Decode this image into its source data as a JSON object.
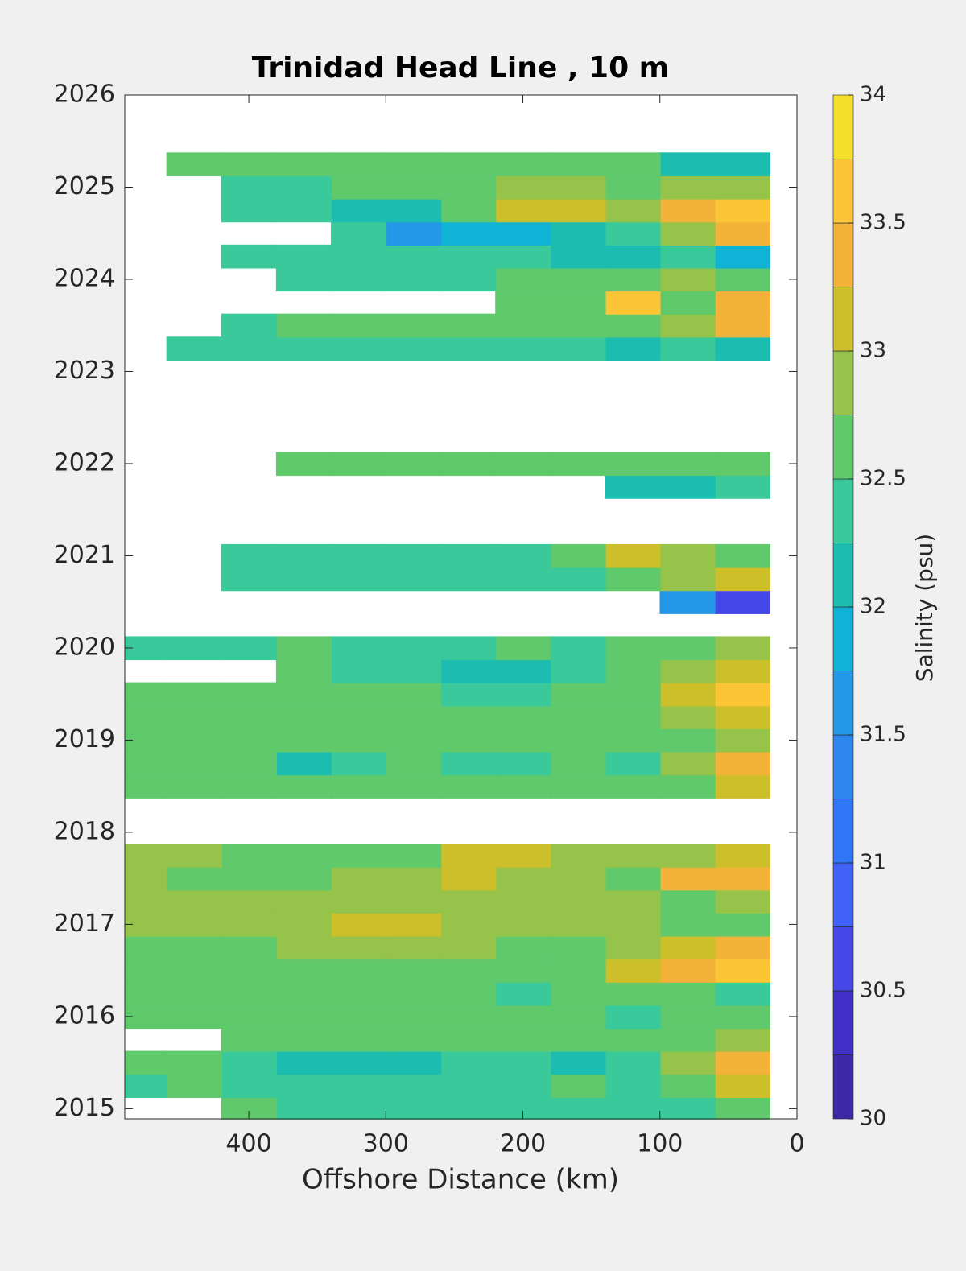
{
  "chart_data": {
    "type": "contour",
    "title": "Trinidad Head Line , 10 m",
    "x_label": "Offshore Distance (km)",
    "colorbar_label": "Salinity (psu)",
    "xlim": [
      490.5,
      0
    ],
    "ylim": [
      2014.89,
      2026
    ],
    "xticks": [
      0,
      100,
      200,
      300,
      400
    ],
    "yticks": [
      2015,
      2016,
      2017,
      2018,
      2019,
      2020,
      2021,
      2022,
      2023,
      2024,
      2025,
      2026
    ],
    "x": [
      40,
      80,
      120,
      160,
      200,
      240,
      280,
      320,
      360,
      400,
      440,
      480
    ],
    "y": [
      2015,
      2015.25,
      2015.5,
      2015.75,
      2016,
      2016.25,
      2016.5,
      2016.75,
      2017,
      2017.25,
      2017.5,
      2017.75,
      2018,
      2018.25,
      2018.5,
      2018.75,
      2019,
      2019.25,
      2019.5,
      2019.75,
      2020,
      2020.25,
      2020.5,
      2020.75,
      2021,
      2021.25,
      2021.5,
      2021.75,
      2022,
      2022.25,
      2022.5,
      2022.75,
      2023,
      2023.25,
      2023.5,
      2023.75,
      2024,
      2024.25,
      2024.5,
      2024.75,
      2025,
      2025.25
    ],
    "z": [
      [
        32.6,
        32.4,
        32.4,
        32.4,
        32.4,
        32.3,
        32.4,
        32.4,
        32.4,
        32.5,
        null,
        null
      ],
      [
        33.1,
        32.6,
        32.3,
        32.5,
        32.3,
        32.4,
        32.3,
        32.3,
        32.4,
        32.4,
        32.5,
        32.4
      ],
      [
        33.4,
        32.9,
        32.3,
        32.2,
        32.4,
        32.3,
        32.2,
        32.2,
        32.1,
        32.3,
        32.5,
        32.5
      ],
      [
        32.8,
        32.5,
        32.6,
        32.7,
        32.6,
        32.5,
        32.5,
        32.5,
        32.6,
        32.7,
        null,
        null
      ],
      [
        32.5,
        32.6,
        32.4,
        32.7,
        32.6,
        32.5,
        32.6,
        32.5,
        32.5,
        32.6,
        32.7,
        32.6
      ],
      [
        32.3,
        32.6,
        32.6,
        32.5,
        32.4,
        32.6,
        32.5,
        32.6,
        32.6,
        32.5,
        32.6,
        32.6
      ],
      [
        33.5,
        33.3,
        33.0,
        32.5,
        32.7,
        32.6,
        32.6,
        32.7,
        32.6,
        32.5,
        32.6,
        32.6
      ],
      [
        33.3,
        33.1,
        32.8,
        32.6,
        32.7,
        32.8,
        32.9,
        32.8,
        32.9,
        32.7,
        32.6,
        32.7
      ],
      [
        32.6,
        32.7,
        32.8,
        32.8,
        32.9,
        32.9,
        33.0,
        33.1,
        32.8,
        32.8,
        32.9,
        32.8
      ],
      [
        32.8,
        32.7,
        32.9,
        32.9,
        32.9,
        32.8,
        32.9,
        32.8,
        32.8,
        32.9,
        32.8,
        32.9
      ],
      [
        33.3,
        33.4,
        32.7,
        32.8,
        32.9,
        33.1,
        32.9,
        32.8,
        32.7,
        32.6,
        32.6,
        32.9
      ],
      [
        33.0,
        32.9,
        32.8,
        32.9,
        33.0,
        33.1,
        32.6,
        32.5,
        32.6,
        32.7,
        32.9,
        32.9
      ],
      [
        null,
        null,
        null,
        null,
        null,
        null,
        null,
        null,
        null,
        null,
        null,
        null
      ],
      [
        null,
        null,
        null,
        null,
        null,
        null,
        null,
        null,
        null,
        null,
        null,
        null
      ],
      [
        33.1,
        32.5,
        32.7,
        32.6,
        32.5,
        32.6,
        32.7,
        32.6,
        32.5,
        32.6,
        32.5,
        32.5
      ],
      [
        33.3,
        32.8,
        32.3,
        32.5,
        32.4,
        32.3,
        32.5,
        32.4,
        32.2,
        32.5,
        32.6,
        32.6
      ],
      [
        32.9,
        32.7,
        32.5,
        32.7,
        32.6,
        32.6,
        32.6,
        32.5,
        32.6,
        32.7,
        32.6,
        32.6
      ],
      [
        33.0,
        32.8,
        32.6,
        32.5,
        32.6,
        32.5,
        32.5,
        32.6,
        32.5,
        32.6,
        32.6,
        32.6
      ],
      [
        33.6,
        33.1,
        32.7,
        32.5,
        32.4,
        32.4,
        32.5,
        32.6,
        32.5,
        32.6,
        32.5,
        32.5
      ],
      [
        33.2,
        32.9,
        32.6,
        32.4,
        32.1,
        32.1,
        32.3,
        32.4,
        32.5,
        null,
        null,
        null
      ],
      [
        32.9,
        32.7,
        32.5,
        32.4,
        32.5,
        32.4,
        32.4,
        32.3,
        32.5,
        32.4,
        32.3,
        32.3
      ],
      [
        null,
        null,
        null,
        null,
        null,
        null,
        null,
        null,
        null,
        null,
        null,
        null
      ],
      [
        30.6,
        31.7,
        null,
        null,
        null,
        null,
        null,
        null,
        null,
        null,
        null,
        null
      ],
      [
        33.2,
        32.8,
        32.6,
        32.4,
        32.4,
        32.3,
        32.3,
        32.4,
        32.3,
        32.3,
        null,
        null
      ],
      [
        32.7,
        32.9,
        33.0,
        32.7,
        32.4,
        32.4,
        32.4,
        32.4,
        32.4,
        32.4,
        null,
        null
      ],
      [
        null,
        null,
        null,
        null,
        null,
        null,
        null,
        null,
        null,
        null,
        null,
        null
      ],
      [
        null,
        null,
        null,
        null,
        null,
        null,
        null,
        null,
        null,
        null,
        null,
        null
      ],
      [
        32.4,
        32.1,
        32.2,
        null,
        null,
        null,
        null,
        null,
        null,
        null,
        null,
        null
      ],
      [
        32.5,
        32.6,
        32.6,
        32.5,
        32.5,
        32.5,
        32.5,
        32.5,
        32.5,
        null,
        null,
        null
      ],
      [
        null,
        null,
        null,
        null,
        null,
        null,
        null,
        null,
        null,
        null,
        null,
        null
      ],
      [
        null,
        null,
        null,
        null,
        null,
        null,
        null,
        null,
        null,
        null,
        null,
        null
      ],
      [
        null,
        null,
        null,
        null,
        null,
        null,
        null,
        null,
        null,
        null,
        null,
        null
      ],
      [
        null,
        null,
        null,
        null,
        null,
        null,
        null,
        null,
        null,
        null,
        null,
        null
      ],
      [
        32.1,
        32.3,
        32.2,
        32.3,
        32.3,
        32.4,
        32.3,
        32.3,
        32.4,
        32.3,
        32.4,
        null
      ],
      [
        33.3,
        32.8,
        32.6,
        32.6,
        32.6,
        32.5,
        32.5,
        32.6,
        32.5,
        32.4,
        null,
        null
      ],
      [
        33.4,
        32.6,
        33.5,
        32.6,
        32.5,
        null,
        null,
        null,
        null,
        null,
        null,
        null
      ],
      [
        32.6,
        32.8,
        32.6,
        32.5,
        32.5,
        32.4,
        32.3,
        32.4,
        32.4,
        null,
        null,
        null
      ],
      [
        31.9,
        32.3,
        32.1,
        32.2,
        32.4,
        32.4,
        32.4,
        32.3,
        32.4,
        32.4,
        null,
        null
      ],
      [
        33.4,
        32.8,
        32.4,
        32.1,
        31.9,
        31.8,
        31.7,
        32.3,
        null,
        null,
        null,
        null
      ],
      [
        33.5,
        33.3,
        32.9,
        33.1,
        33.2,
        32.5,
        32.2,
        32.1,
        32.4,
        32.4,
        null,
        null
      ],
      [
        32.9,
        32.9,
        32.7,
        32.8,
        32.9,
        32.6,
        32.5,
        32.5,
        32.4,
        32.4,
        null,
        null
      ],
      [
        32.0,
        32.2,
        32.6,
        32.6,
        32.6,
        32.5,
        32.5,
        32.5,
        32.5,
        32.5,
        32.5,
        null
      ]
    ],
    "levels": [
      30,
      30.25,
      30.5,
      30.75,
      31,
      31.25,
      31.5,
      31.75,
      32,
      32.25,
      32.5,
      32.75,
      33,
      33.25,
      33.5,
      33.75,
      34
    ],
    "colors": [
      "#3d28a8",
      "#4130c8",
      "#4547e6",
      "#4262f7",
      "#3074f8",
      "#2e86ee",
      "#2497e6",
      "#10b3d6",
      "#1cbdb0",
      "#3ac99a",
      "#5fc96c",
      "#96c34a",
      "#cdbf2a",
      "#f3b33a",
      "#fbc535",
      "#f4e02a"
    ],
    "cticks": [
      30,
      30.5,
      31,
      31.5,
      32,
      32.5,
      33,
      33.5,
      34
    ]
  }
}
